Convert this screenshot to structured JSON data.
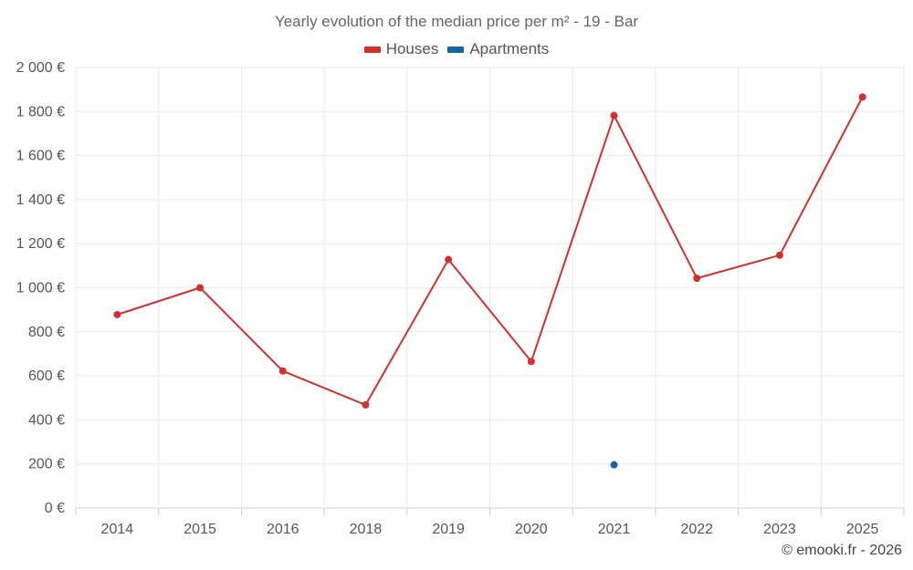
{
  "chart_data": {
    "type": "line",
    "title": "Yearly evolution of the median price per m² - 19 - Bar",
    "categories": [
      "2014",
      "2015",
      "2016",
      "2018",
      "2019",
      "2020",
      "2021",
      "2022",
      "2023",
      "2025"
    ],
    "series": [
      {
        "name": "Houses",
        "color": "#d32f2f",
        "values": [
          878,
          1000,
          622,
          468,
          1128,
          665,
          1782,
          1043,
          1148,
          1866
        ]
      },
      {
        "name": "Apartments",
        "color": "#1565a0",
        "values": [
          null,
          null,
          null,
          null,
          null,
          null,
          196,
          null,
          null,
          null
        ]
      }
    ],
    "ylim": [
      0,
      2000
    ],
    "yticks": [
      0,
      200,
      400,
      600,
      800,
      1000,
      1200,
      1400,
      1600,
      1800,
      2000
    ],
    "ytick_labels": [
      "0 €",
      "200 €",
      "400 €",
      "600 €",
      "800 €",
      "1 000 €",
      "1 200 €",
      "1 400 €",
      "1 600 €",
      "1 800 €",
      "2 000 €"
    ],
    "xlabel": "",
    "ylabel": "",
    "grid": true,
    "legend_position": "top-center"
  },
  "watermark": "© emooki.fr - 2026"
}
